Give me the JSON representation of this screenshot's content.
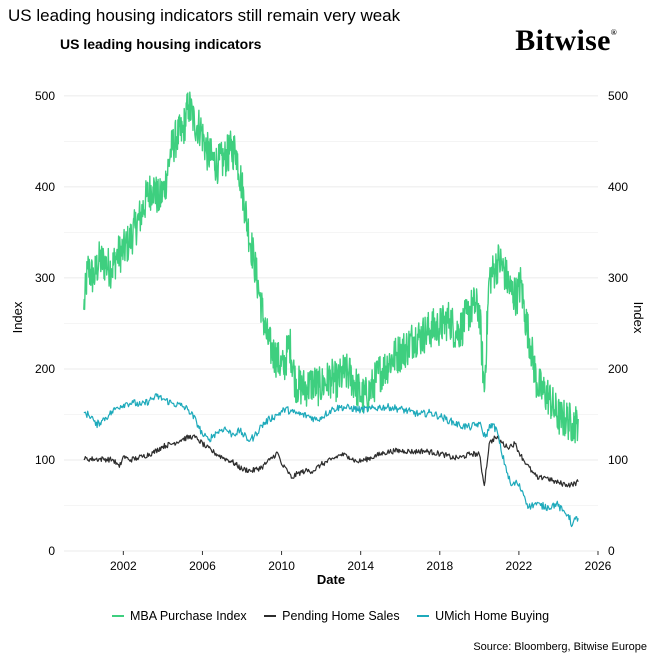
{
  "page_title": "US leading housing indicators still remain very weak",
  "brand": {
    "name": "Bitwise",
    "mark": "®"
  },
  "source": "Source: Bloomberg, Bitwise Europe",
  "colors": {
    "mba": "#3ecf7f",
    "pending": "#2d2d2d",
    "umich": "#1eaabb",
    "grid": "#ebebeb"
  },
  "chart_data": {
    "type": "line",
    "title": "US leading housing indicators",
    "xlabel": "Date",
    "ylabel_left": "Index",
    "ylabel_right": "Index",
    "xlim": [
      1999.0,
      2026.0
    ],
    "ylim": [
      0,
      535
    ],
    "x_ticks": [
      2002,
      2006,
      2010,
      2014,
      2018,
      2022,
      2026
    ],
    "y_ticks": [
      0,
      100,
      200,
      300,
      400,
      500
    ],
    "legend_position": "bottom",
    "series": [
      {
        "name": "MBA Purchase Index",
        "color_key": "mba",
        "noise": 22,
        "points": [
          [
            2000.0,
            265
          ],
          [
            2000.2,
            310
          ],
          [
            2000.5,
            300
          ],
          [
            2000.8,
            320
          ],
          [
            2001.1,
            315
          ],
          [
            2001.4,
            310
          ],
          [
            2001.7,
            325
          ],
          [
            2002.0,
            330
          ],
          [
            2002.3,
            340
          ],
          [
            2002.6,
            355
          ],
          [
            2002.9,
            370
          ],
          [
            2003.2,
            390
          ],
          [
            2003.5,
            400
          ],
          [
            2003.8,
            385
          ],
          [
            2004.1,
            400
          ],
          [
            2004.4,
            440
          ],
          [
            2004.7,
            455
          ],
          [
            2005.0,
            460
          ],
          [
            2005.3,
            490
          ],
          [
            2005.6,
            470
          ],
          [
            2005.9,
            465
          ],
          [
            2006.2,
            440
          ],
          [
            2006.5,
            430
          ],
          [
            2006.8,
            425
          ],
          [
            2007.1,
            430
          ],
          [
            2007.4,
            440
          ],
          [
            2007.7,
            440
          ],
          [
            2008.0,
            400
          ],
          [
            2008.3,
            355
          ],
          [
            2008.6,
            320
          ],
          [
            2008.9,
            280
          ],
          [
            2009.2,
            240
          ],
          [
            2009.5,
            220
          ],
          [
            2009.8,
            210
          ],
          [
            2010.1,
            200
          ],
          [
            2010.4,
            230
          ],
          [
            2010.7,
            185
          ],
          [
            2011.0,
            180
          ],
          [
            2011.3,
            180
          ],
          [
            2011.6,
            185
          ],
          [
            2011.9,
            180
          ],
          [
            2012.2,
            185
          ],
          [
            2012.5,
            190
          ],
          [
            2012.8,
            185
          ],
          [
            2013.1,
            195
          ],
          [
            2013.4,
            195
          ],
          [
            2013.7,
            185
          ],
          [
            2014.0,
            170
          ],
          [
            2014.3,
            170
          ],
          [
            2014.6,
            180
          ],
          [
            2014.9,
            195
          ],
          [
            2015.2,
            200
          ],
          [
            2015.5,
            210
          ],
          [
            2015.8,
            215
          ],
          [
            2016.1,
            220
          ],
          [
            2016.4,
            225
          ],
          [
            2016.7,
            235
          ],
          [
            2017.0,
            235
          ],
          [
            2017.3,
            240
          ],
          [
            2017.6,
            245
          ],
          [
            2017.9,
            245
          ],
          [
            2018.2,
            250
          ],
          [
            2018.5,
            255
          ],
          [
            2018.8,
            240
          ],
          [
            2019.1,
            245
          ],
          [
            2019.4,
            260
          ],
          [
            2019.7,
            270
          ],
          [
            2020.0,
            265
          ],
          [
            2020.25,
            175
          ],
          [
            2020.5,
            300
          ],
          [
            2020.8,
            310
          ],
          [
            2021.0,
            320
          ],
          [
            2021.3,
            305
          ],
          [
            2021.6,
            285
          ],
          [
            2021.9,
            280
          ],
          [
            2022.1,
            295
          ],
          [
            2022.3,
            260
          ],
          [
            2022.6,
            225
          ],
          [
            2022.9,
            185
          ],
          [
            2023.2,
            175
          ],
          [
            2023.5,
            170
          ],
          [
            2023.8,
            155
          ],
          [
            2024.1,
            145
          ],
          [
            2024.4,
            145
          ],
          [
            2024.7,
            140
          ],
          [
            2024.9,
            140
          ],
          [
            2025.0,
            145
          ]
        ]
      },
      {
        "name": "Pending Home Sales",
        "color_key": "pending",
        "noise": 3,
        "points": [
          [
            2000.0,
            101
          ],
          [
            2000.5,
            101
          ],
          [
            2001.0,
            101
          ],
          [
            2001.5,
            100
          ],
          [
            2001.8,
            92
          ],
          [
            2002.0,
            104
          ],
          [
            2002.3,
            100
          ],
          [
            2002.7,
            102
          ],
          [
            2003.0,
            104
          ],
          [
            2003.5,
            108
          ],
          [
            2004.0,
            115
          ],
          [
            2004.5,
            118
          ],
          [
            2005.0,
            123
          ],
          [
            2005.5,
            126
          ],
          [
            2005.8,
            122
          ],
          [
            2006.2,
            114
          ],
          [
            2006.6,
            108
          ],
          [
            2007.0,
            103
          ],
          [
            2007.5,
            98
          ],
          [
            2008.0,
            90
          ],
          [
            2008.5,
            88
          ],
          [
            2009.0,
            92
          ],
          [
            2009.4,
            100
          ],
          [
            2009.8,
            108
          ],
          [
            2010.0,
            95
          ],
          [
            2010.3,
            88
          ],
          [
            2010.5,
            80
          ],
          [
            2010.8,
            85
          ],
          [
            2011.2,
            88
          ],
          [
            2011.6,
            88
          ],
          [
            2012.0,
            95
          ],
          [
            2012.5,
            100
          ],
          [
            2013.0,
            106
          ],
          [
            2013.4,
            104
          ],
          [
            2013.8,
            98
          ],
          [
            2014.2,
            100
          ],
          [
            2014.7,
            104
          ],
          [
            2015.2,
            108
          ],
          [
            2015.7,
            110
          ],
          [
            2016.2,
            110
          ],
          [
            2016.7,
            109
          ],
          [
            2017.2,
            110
          ],
          [
            2017.7,
            108
          ],
          [
            2018.2,
            106
          ],
          [
            2018.7,
            102
          ],
          [
            2019.1,
            103
          ],
          [
            2019.6,
            107
          ],
          [
            2020.0,
            106
          ],
          [
            2020.25,
            72
          ],
          [
            2020.5,
            118
          ],
          [
            2020.8,
            125
          ],
          [
            2021.0,
            122
          ],
          [
            2021.4,
            114
          ],
          [
            2021.8,
            118
          ],
          [
            2022.1,
            105
          ],
          [
            2022.4,
            95
          ],
          [
            2022.7,
            86
          ],
          [
            2023.0,
            79
          ],
          [
            2023.3,
            82
          ],
          [
            2023.7,
            77
          ],
          [
            2024.0,
            75
          ],
          [
            2024.4,
            73
          ],
          [
            2024.7,
            73
          ],
          [
            2025.0,
            76
          ]
        ]
      },
      {
        "name": "UMich Home Buying",
        "color_key": "umich",
        "noise": 4,
        "points": [
          [
            2000.0,
            152
          ],
          [
            2000.4,
            148
          ],
          [
            2000.6,
            138
          ],
          [
            2000.9,
            143
          ],
          [
            2001.3,
            150
          ],
          [
            2001.7,
            158
          ],
          [
            2002.1,
            162
          ],
          [
            2002.5,
            163
          ],
          [
            2002.9,
            160
          ],
          [
            2003.3,
            165
          ],
          [
            2003.7,
            170
          ],
          [
            2004.1,
            166
          ],
          [
            2004.5,
            162
          ],
          [
            2004.9,
            160
          ],
          [
            2005.3,
            155
          ],
          [
            2005.7,
            142
          ],
          [
            2006.0,
            128
          ],
          [
            2006.3,
            122
          ],
          [
            2006.7,
            130
          ],
          [
            2007.1,
            135
          ],
          [
            2007.5,
            128
          ],
          [
            2007.9,
            132
          ],
          [
            2008.3,
            122
          ],
          [
            2008.6,
            125
          ],
          [
            2009.0,
            138
          ],
          [
            2009.4,
            145
          ],
          [
            2009.8,
            150
          ],
          [
            2010.2,
            156
          ],
          [
            2010.6,
            152
          ],
          [
            2011.0,
            150
          ],
          [
            2011.4,
            148
          ],
          [
            2011.8,
            144
          ],
          [
            2012.2,
            150
          ],
          [
            2012.6,
            156
          ],
          [
            2013.0,
            158
          ],
          [
            2013.5,
            157
          ],
          [
            2014.0,
            155
          ],
          [
            2014.5,
            156
          ],
          [
            2015.0,
            158
          ],
          [
            2015.5,
            158
          ],
          [
            2016.0,
            156
          ],
          [
            2016.5,
            153
          ],
          [
            2017.0,
            150
          ],
          [
            2017.5,
            152
          ],
          [
            2018.0,
            148
          ],
          [
            2018.5,
            143
          ],
          [
            2019.0,
            138
          ],
          [
            2019.5,
            136
          ],
          [
            2020.0,
            140
          ],
          [
            2020.3,
            125
          ],
          [
            2020.6,
            140
          ],
          [
            2020.9,
            132
          ],
          [
            2021.1,
            110
          ],
          [
            2021.3,
            95
          ],
          [
            2021.6,
            72
          ],
          [
            2021.9,
            75
          ],
          [
            2022.2,
            65
          ],
          [
            2022.5,
            48
          ],
          [
            2022.8,
            52
          ],
          [
            2023.1,
            50
          ],
          [
            2023.5,
            48
          ],
          [
            2023.9,
            52
          ],
          [
            2024.2,
            44
          ],
          [
            2024.5,
            40
          ],
          [
            2024.7,
            28
          ],
          [
            2024.85,
            35
          ],
          [
            2025.0,
            36
          ]
        ]
      }
    ]
  }
}
